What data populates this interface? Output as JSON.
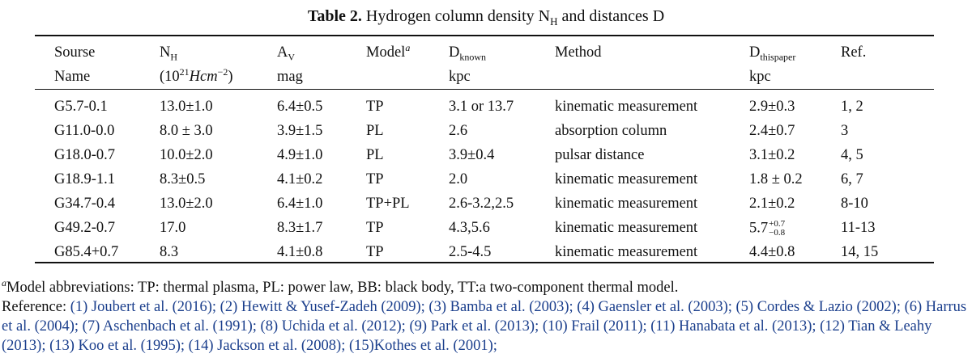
{
  "caption": {
    "label": "Table 2.",
    "text_before_sub": "Hydrogen column density N",
    "sub": "H",
    "text_after_sub": " and distances D"
  },
  "table": {
    "header_row1": {
      "source": "Sourse",
      "nh_base": "N",
      "nh_sub": "H",
      "av_base": "A",
      "av_sub": "V",
      "model_base": "Model",
      "model_sup": "a",
      "dknown_base": "D",
      "dknown_sub": "known",
      "method": "Method",
      "dthis_base": "D",
      "dthis_sub": "thispaper",
      "ref": "Ref."
    },
    "header_row2": {
      "source": "Name",
      "nh_unit_pre": "(10",
      "nh_unit_exp": "21",
      "nh_unit_mid": "Hcm",
      "nh_unit_exp2": "−2",
      "nh_unit_post": ")",
      "av_unit": "mag",
      "dknown_unit": "kpc",
      "dthis_unit": "kpc"
    },
    "rows": [
      {
        "source": "G5.7-0.1",
        "nh": "13.0±1.0",
        "av": "6.4±0.5",
        "model": "TP",
        "dknown": "3.1 or 13.7",
        "method": "kinematic measurement",
        "dthis": "2.9±0.3",
        "ref": "1, 2"
      },
      {
        "source": "G11.0-0.0",
        "nh": "8.0 ± 3.0",
        "av": "3.9±1.5",
        "model": "PL",
        "dknown": "2.6",
        "method": "absorption column",
        "dthis": "2.4±0.7",
        "ref": "3"
      },
      {
        "source": "G18.0-0.7",
        "nh": "10.0±2.0",
        "av": "4.9±1.0",
        "model": "PL",
        "dknown": "3.9±0.4",
        "method": "pulsar distance",
        "dthis": "3.1±0.2",
        "ref": "4, 5"
      },
      {
        "source": "G18.9-1.1",
        "nh": "8.3±0.5",
        "av": "4.1±0.2",
        "model": "TP",
        "dknown": "2.0",
        "method": "kinematic measurement",
        "dthis": "1.8 ± 0.2",
        "ref": "6, 7"
      },
      {
        "source": "G34.7-0.4",
        "nh": "13.0±2.0",
        "av": "6.4±1.0",
        "model": "TP+PL",
        "dknown": "2.6-3.2,2.5",
        "method": "kinematic measurement",
        "dthis": "2.1±0.2",
        "ref": "8-10"
      },
      {
        "source": "G49.2-0.7",
        "nh": "17.0",
        "av": "8.3±1.7",
        "model": "TP",
        "dknown": "4.3,5.6",
        "method": "kinematic measurement",
        "dthis_base": "5.7",
        "dthis_up": "+0.7",
        "dthis_down": "−0.8",
        "ref": "11-13"
      },
      {
        "source": "G85.4+0.7",
        "nh": "8.3",
        "av": "4.1±0.8",
        "model": "TP",
        "dknown": "2.5-4.5",
        "method": "kinematic measurement",
        "dthis": "4.4±0.8",
        "ref": "14, 15"
      }
    ]
  },
  "notes": {
    "footnote_mark": "a",
    "footnote_text": "Model abbreviations: TP: thermal plasma, PL: power law, BB: black body, TT:a two-component thermal model.",
    "reference_label": "Reference:",
    "reference_text": " (1) Joubert et al. (2016); (2) Hewitt & Yusef-Zadeh (2009); (3) Bamba et al. (2003); (4) Gaensler et al. (2003); (5) Cordes & Lazio (2002); (6) Harrus et al. (2004); (7) Aschenbach et al. (1991); (8) Uchida et al. (2012); (9) Park et al. (2013); (10) Frail (2011); (11) Hanabata et al. (2013); (12) Tian & Leahy (2013); (13) Koo et al. (1995); (14) Jackson et al. (2008); (15)Kothes et al. (2001);"
  }
}
